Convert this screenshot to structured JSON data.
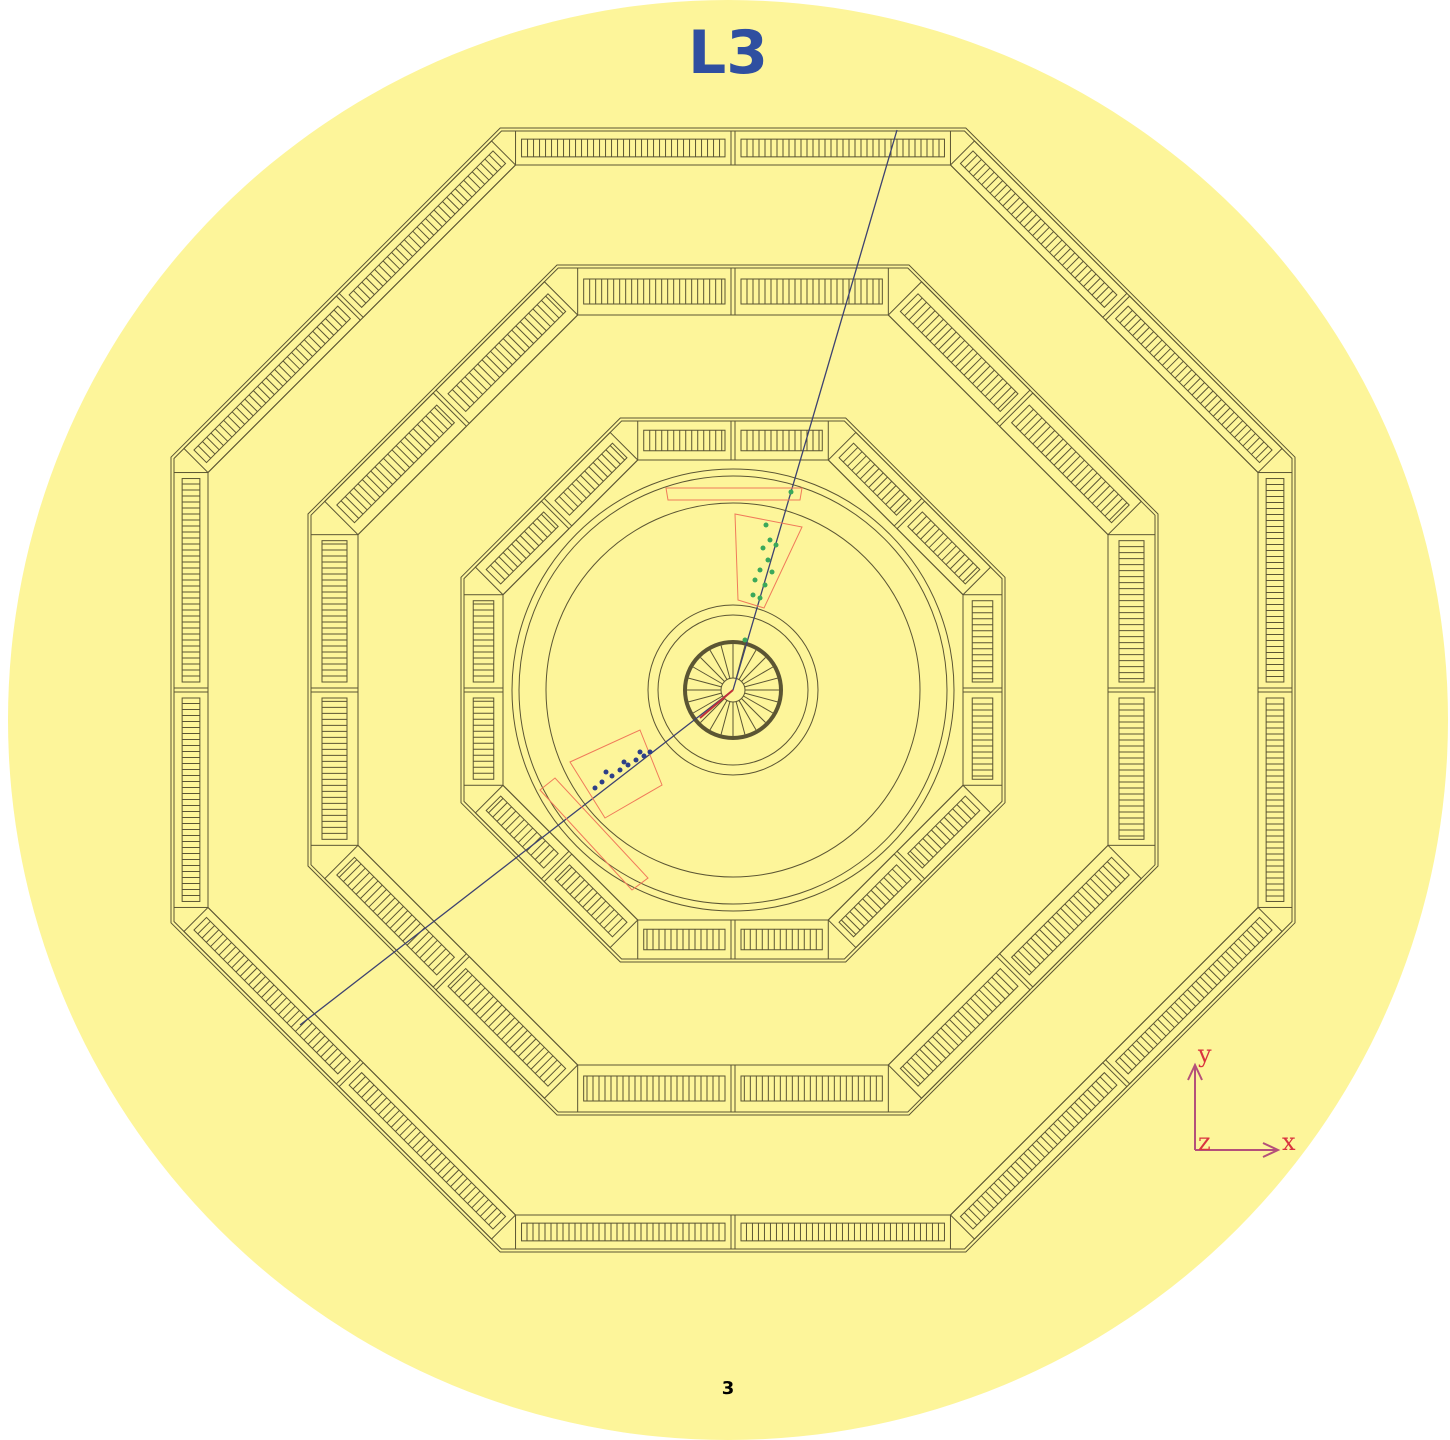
{
  "title": "L3",
  "page_number": "3",
  "axes": {
    "y": "y",
    "z": "z",
    "x": "x"
  }
}
